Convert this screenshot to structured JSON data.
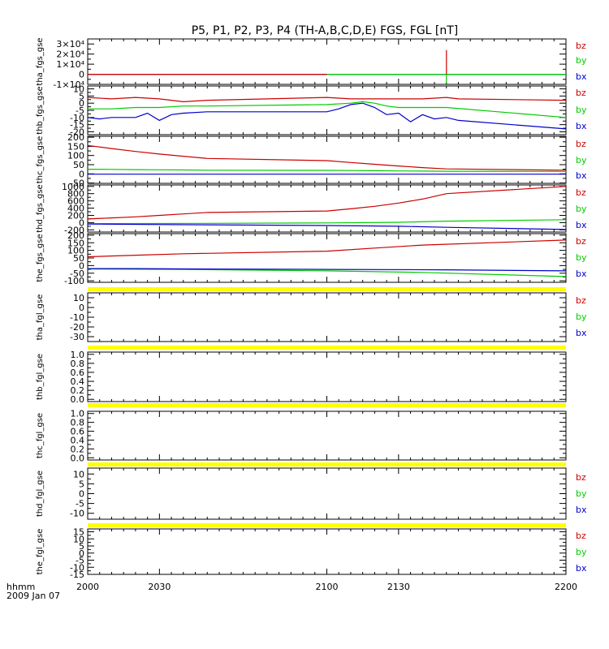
{
  "title": "P5, P1, P2, P3, P4 (TH-A,B,C,D,E) FGS, FGL [nT]",
  "time_label": "hhmm",
  "date_label": "2009 Jan 07",
  "colors": {
    "bz": "#cc0000",
    "by": "#00cc00",
    "bx": "#0000cc",
    "yellow": "#ffff00"
  },
  "chart_data": [
    {
      "type": "line",
      "ylabel": "tha_fgs_gse",
      "ylim": [
        -10000,
        35000
      ],
      "yticks": [
        -10000,
        0,
        10000,
        20000,
        30000
      ],
      "yticklabels": [
        "-1×10⁴",
        "0",
        "1×10⁴",
        "2×10⁴",
        "3×10⁴"
      ],
      "legend": [
        "bz",
        "by",
        "bx"
      ],
      "series": [
        {
          "name": "bx",
          "x": [
            2000,
            2200
          ],
          "y": [
            0,
            0
          ]
        },
        {
          "name": "by",
          "x": [
            2100,
            2200
          ],
          "y": [
            0,
            0
          ]
        },
        {
          "name": "bz",
          "x": [
            2000,
            2100
          ],
          "y": [
            0,
            0
          ]
        },
        {
          "name": "bz",
          "x": [
            2150,
            2150,
            2150
          ],
          "y": [
            0,
            24000,
            0
          ]
        },
        {
          "name": "by",
          "x": [
            2150,
            2150,
            2150
          ],
          "y": [
            0,
            -9000,
            0
          ]
        }
      ]
    },
    {
      "type": "line",
      "ylabel": "thb_fgs_gse",
      "ylim": [
        -22,
        12
      ],
      "yticks": [
        -20,
        -15,
        -10,
        -5,
        0,
        5,
        10
      ],
      "yticklabels": [
        "-20",
        "-15",
        "-10",
        "-5",
        "0",
        "5",
        "10"
      ],
      "legend": [
        "bz",
        "by",
        "bx"
      ],
      "series": [
        {
          "name": "bz",
          "x": [
            2000,
            2010,
            2020,
            2030,
            2040,
            2050,
            2100,
            2110,
            2120,
            2130,
            2140,
            2150,
            2155,
            2200
          ],
          "y": [
            4,
            3,
            4,
            3,
            1,
            2,
            4,
            3,
            3,
            3,
            3,
            4,
            3,
            2
          ]
        },
        {
          "name": "by",
          "x": [
            2000,
            2010,
            2020,
            2030,
            2040,
            2050,
            2100,
            2110,
            2115,
            2120,
            2125,
            2130,
            2140,
            2150,
            2200
          ],
          "y": [
            -4,
            -4,
            -3,
            -3,
            -2,
            -2,
            -1,
            0,
            1,
            0,
            -2,
            -3,
            -3,
            -3,
            -10
          ]
        },
        {
          "name": "bx",
          "x": [
            2000,
            2005,
            2010,
            2020,
            2025,
            2030,
            2035,
            2040,
            2050,
            2100,
            2105,
            2110,
            2115,
            2120,
            2125,
            2130,
            2135,
            2140,
            2145,
            2150,
            2155,
            2200
          ],
          "y": [
            -10,
            -11,
            -10,
            -10,
            -7,
            -12,
            -8,
            -7,
            -6,
            -6,
            -4,
            -1,
            0,
            -3,
            -8,
            -7,
            -13,
            -8,
            -11,
            -10,
            -12,
            -18
          ]
        }
      ]
    },
    {
      "type": "line",
      "ylabel": "thc_fgs_gse",
      "ylim": [
        -52,
        205
      ],
      "yticks": [
        -50,
        0,
        50,
        100,
        150,
        200
      ],
      "yticklabels": [
        "-50",
        "0",
        "50",
        "100",
        "150",
        "200"
      ],
      "legend": [
        "bz",
        "by",
        "bx"
      ],
      "series": [
        {
          "name": "bz",
          "x": [
            2000,
            2010,
            2020,
            2030,
            2040,
            2050,
            2100,
            2110,
            2120,
            2130,
            2140,
            2150,
            2200
          ],
          "y": [
            155,
            138,
            122,
            108,
            96,
            84,
            72,
            62,
            52,
            43,
            34,
            27,
            20
          ]
        },
        {
          "name": "by",
          "x": [
            2000,
            2010,
            2020,
            2030,
            2040,
            2050,
            2100,
            2110,
            2120,
            2130,
            2140,
            2150,
            2200
          ],
          "y": [
            25,
            24,
            23,
            22,
            21,
            20,
            19,
            18,
            17,
            16,
            15,
            14,
            13
          ]
        },
        {
          "name": "bx",
          "x": [
            2000,
            2050,
            2100,
            2150,
            2200
          ],
          "y": [
            -2,
            -2,
            -2,
            -2,
            -2
          ]
        }
      ]
    },
    {
      "type": "line",
      "ylabel": "thd_fgs_gse",
      "ylim": [
        -260,
        1040
      ],
      "yticks": [
        -200,
        0,
        200,
        400,
        600,
        800,
        1000
      ],
      "yticklabels": [
        "-200",
        "0",
        "200",
        "400",
        "600",
        "800",
        "1000"
      ],
      "legend": [
        "bz",
        "by",
        "bx"
      ],
      "series": [
        {
          "name": "bz",
          "x": [
            2000,
            2010,
            2020,
            2030,
            2040,
            2050,
            2100,
            2110,
            2120,
            2130,
            2140,
            2150,
            2200
          ],
          "y": [
            100,
            130,
            160,
            200,
            240,
            280,
            320,
            380,
            450,
            540,
            650,
            800,
            1000
          ]
        },
        {
          "name": "by",
          "x": [
            2000,
            2050,
            2100,
            2130,
            2150,
            2200
          ],
          "y": [
            -30,
            -20,
            -10,
            10,
            40,
            80
          ]
        },
        {
          "name": "bx",
          "x": [
            2000,
            2050,
            2100,
            2130,
            2150,
            2200
          ],
          "y": [
            -40,
            -60,
            -80,
            -100,
            -130,
            -190
          ]
        }
      ]
    },
    {
      "type": "line",
      "ylabel": "the_fgs_gse",
      "ylim": [
        -110,
        210
      ],
      "yticks": [
        -100,
        -50,
        0,
        50,
        100,
        150,
        200
      ],
      "yticklabels": [
        "-100",
        "-50",
        "0",
        "50",
        "100",
        "150",
        "200"
      ],
      "legend": [
        "bz",
        "by",
        "bx"
      ],
      "series": [
        {
          "name": "bz",
          "x": [
            2000,
            2020,
            2040,
            2100,
            2120,
            2140,
            2200
          ],
          "y": [
            58,
            68,
            78,
            95,
            115,
            135,
            168
          ]
        },
        {
          "name": "by",
          "x": [
            2000,
            2040,
            2100,
            2140,
            2200
          ],
          "y": [
            -22,
            -25,
            -35,
            -45,
            -72
          ]
        },
        {
          "name": "bx",
          "x": [
            2000,
            2020,
            2040,
            2100,
            2150,
            2200
          ],
          "y": [
            -20,
            -20,
            -22,
            -25,
            -28,
            -35
          ]
        }
      ]
    },
    {
      "type": "line",
      "ylabel": "tha_fgl_gse",
      "ylim": [
        -35,
        15
      ],
      "yticks": [
        -30,
        -20,
        -10,
        0,
        10
      ],
      "yticklabels": [
        "-30",
        "-20",
        "-10",
        "0",
        "10"
      ],
      "legend": [
        "bz",
        "by",
        "bx"
      ],
      "series": []
    },
    {
      "type": "line",
      "ylabel": "thb_fgl_gse",
      "ylim": [
        -0.05,
        1.05
      ],
      "yticks": [
        0,
        0.2,
        0.4,
        0.6,
        0.8,
        1.0
      ],
      "yticklabels": [
        "0.0",
        "0.2",
        "0.4",
        "0.6",
        "0.8",
        "1.0"
      ],
      "legend": [],
      "series": []
    },
    {
      "type": "line",
      "ylabel": "thc_fgl_gse",
      "ylim": [
        -0.05,
        1.05
      ],
      "yticks": [
        0,
        0.2,
        0.4,
        0.6,
        0.8,
        1.0
      ],
      "yticklabels": [
        "0.0",
        "0.2",
        "0.4",
        "0.6",
        "0.8",
        "1.0"
      ],
      "legend": [],
      "series": []
    },
    {
      "type": "line",
      "ylabel": "thd_fgl_gse",
      "ylim": [
        -13,
        13
      ],
      "yticks": [
        -10,
        -5,
        0,
        5,
        10
      ],
      "yticklabels": [
        "-10",
        "-5",
        "0",
        "5",
        "10"
      ],
      "legend": [
        "bz",
        "by",
        "bx"
      ],
      "series": []
    },
    {
      "type": "line",
      "ylabel": "the_fgl_gse",
      "ylim": [
        -15,
        17
      ],
      "yticks": [
        -15,
        -10,
        -5,
        0,
        5,
        10,
        15
      ],
      "yticklabels": [
        "-15",
        "-10",
        "-5",
        "0",
        "5",
        "10",
        "15"
      ],
      "legend": [
        "bz",
        "by",
        "bx"
      ],
      "series": []
    }
  ],
  "xaxis": {
    "xlim": [
      2000,
      2200
    ],
    "ticks": [
      2000,
      2030,
      2100,
      2130,
      2200
    ],
    "ticklabels": [
      "2000",
      "2030",
      "2100",
      "2130",
      "2200"
    ],
    "minor_step": 5
  }
}
